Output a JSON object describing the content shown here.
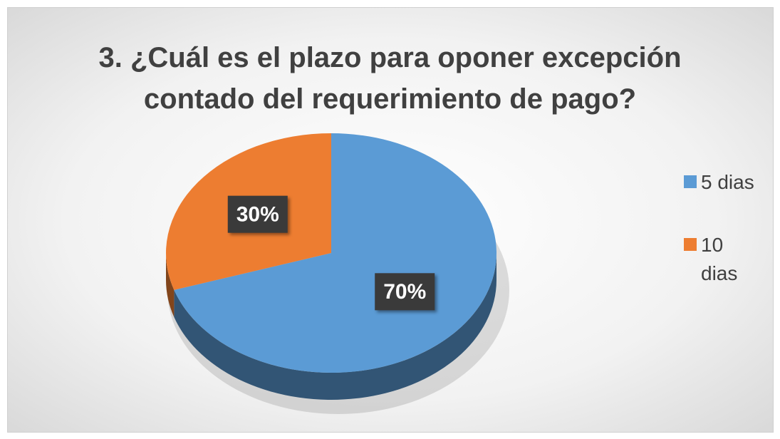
{
  "chart_data": {
    "type": "pie",
    "title": "3. ¿Cuál es el plazo para oponer excepción contado del requerimiento de pago?",
    "categories": [
      "5 dias",
      "10 dias"
    ],
    "values": [
      70,
      30
    ],
    "value_labels": [
      "70%",
      "30%"
    ],
    "colors": [
      "#5b9bd5",
      "#ed7d31"
    ],
    "legend": "right"
  }
}
